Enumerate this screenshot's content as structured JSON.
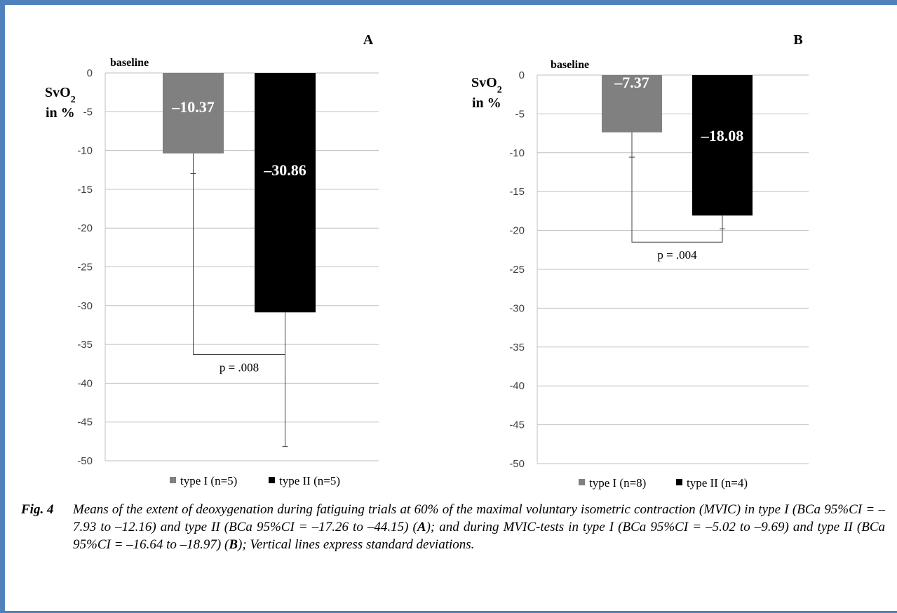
{
  "chart_data": [
    {
      "type": "bar",
      "panel": "A",
      "ylabel": "SvO2 in %",
      "ylabel_main": "SvO",
      "ylabel_sub": "2",
      "ylabel_line2": "in %",
      "baseline_label": "baseline",
      "ylim": [
        -50,
        0
      ],
      "yticks": [
        0,
        -5,
        -10,
        -15,
        -20,
        -25,
        -30,
        -35,
        -40,
        -45,
        -50
      ],
      "grid": true,
      "legend_position": "bottom",
      "series": [
        {
          "name": "type I (n=5)",
          "value": -10.37,
          "label": "–10.37",
          "sd": 2.6,
          "color": "#808080"
        },
        {
          "name": "type II (n=5)",
          "value": -30.86,
          "label": "–30.86",
          "sd": 17.3,
          "color": "#000000"
        }
      ],
      "significance": {
        "label": "p = .008",
        "level": -36.3
      }
    },
    {
      "type": "bar",
      "panel": "B",
      "ylabel": "SvO2 in %",
      "ylabel_main": "SvO",
      "ylabel_sub": "2",
      "ylabel_line2": "in %",
      "baseline_label": "baseline",
      "ylim": [
        -50,
        0
      ],
      "yticks": [
        0,
        -5,
        -10,
        -15,
        -20,
        -25,
        -30,
        -35,
        -40,
        -45,
        -50
      ],
      "grid": true,
      "legend_position": "bottom",
      "series": [
        {
          "name": "type I (n=8)",
          "value": -7.37,
          "label": "–7.37",
          "sd": 3.2,
          "color": "#808080"
        },
        {
          "name": "type II (n=4)",
          "value": -18.08,
          "label": "–18.08",
          "sd": 1.7,
          "color": "#000000"
        }
      ],
      "significance": {
        "label": "p = .004",
        "level": -21.5
      }
    }
  ],
  "caption": {
    "label": "Fig. 4",
    "text_1": "Means of the extent of deoxygenation during fatiguing trials at 60% of the maximal voluntary isometric contraction (MVIC) in type I (BCa 95%CI = –7.93 to –12.16) and type II (BCa 95%CI = –17.26 to –44.15) (",
    "ref_a": "A",
    "text_2": "); and during MVIC-tests in type I (BCa 95%CI = –5.02 to –9.69) and type II (BCa 95%CI = –16.64 to –18.97) (",
    "ref_b": "B",
    "text_3": "); Vertical lines express standard deviations."
  }
}
